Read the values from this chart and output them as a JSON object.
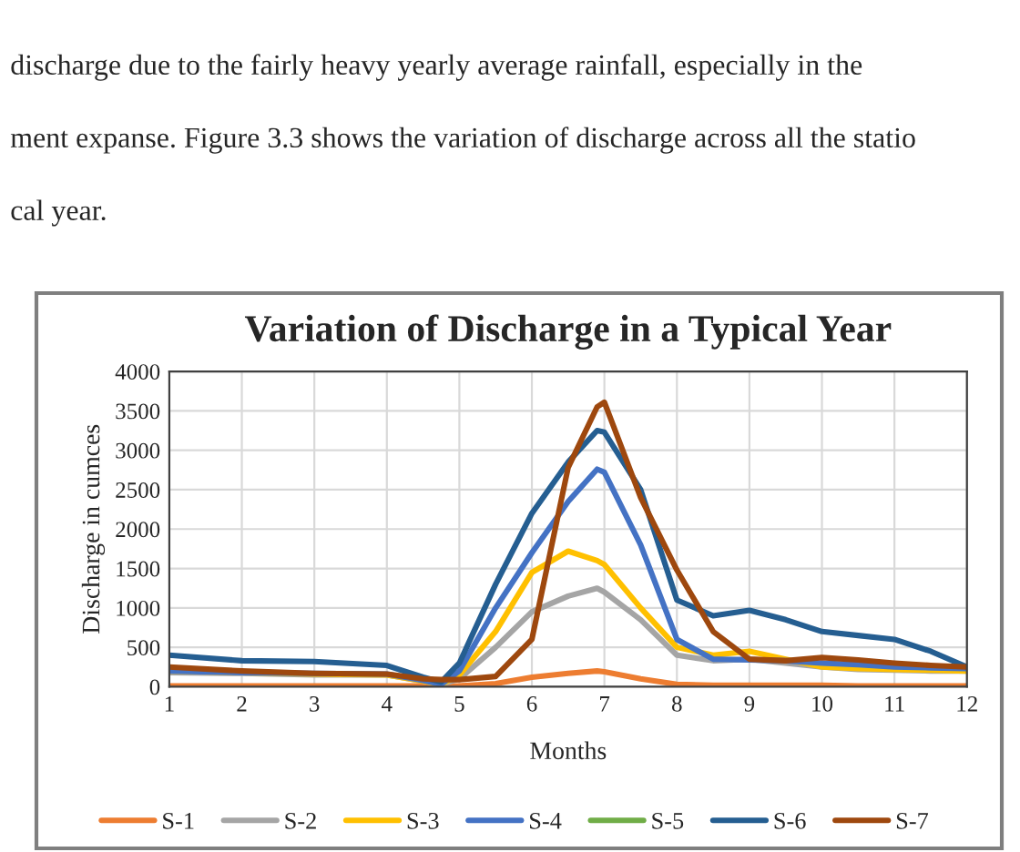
{
  "chart_data": {
    "type": "line",
    "title": "Variation of Discharge in a Typical Year",
    "xlabel": "Months",
    "ylabel": "Discharge in cumces",
    "annotations": [
      "discharge due to the fairly heavy yearly average rainfall, especially in the",
      "ment expanse. Figure 3.3 shows the variation of discharge across all the statio",
      "cal year."
    ],
    "x": [
      1,
      2,
      3,
      4,
      4.5,
      4.75,
      5,
      5.5,
      6,
      6.5,
      6.9,
      7,
      7.5,
      8,
      8.5,
      9,
      9.5,
      10,
      10.5,
      11,
      11.5,
      12
    ],
    "series": [
      {
        "name": "S-1",
        "color": "#ed7d31",
        "values": [
          10,
          10,
          10,
          10,
          10,
          10,
          10,
          40,
          120,
          170,
          200,
          190,
          100,
          30,
          20,
          20,
          20,
          20,
          10,
          10,
          10,
          10
        ]
      },
      {
        "name": "S-2",
        "color": "#a5a5a5",
        "values": [
          180,
          170,
          150,
          150,
          70,
          30,
          100,
          500,
          950,
          1150,
          1250,
          1200,
          850,
          400,
          330,
          350,
          300,
          250,
          220,
          210,
          200,
          200
        ]
      },
      {
        "name": "S-3",
        "color": "#ffc000",
        "values": [
          200,
          180,
          160,
          150,
          70,
          30,
          150,
          700,
          1450,
          1720,
          1600,
          1550,
          1000,
          500,
          400,
          450,
          350,
          250,
          230,
          220,
          210,
          200
        ]
      },
      {
        "name": "S-4",
        "color": "#4472c4",
        "values": [
          200,
          180,
          170,
          160,
          80,
          30,
          200,
          1000,
          1700,
          2350,
          2760,
          2720,
          1800,
          600,
          350,
          340,
          330,
          300,
          280,
          250,
          240,
          230
        ]
      },
      {
        "name": "S-5",
        "color": "#70ad47",
        "values": [
          null,
          null,
          null,
          null,
          null,
          null,
          null,
          null,
          null,
          null,
          null,
          null,
          null,
          null,
          null,
          null,
          null,
          null,
          null,
          null,
          null,
          null
        ]
      },
      {
        "name": "S-6",
        "color": "#255e91",
        "values": [
          400,
          330,
          320,
          270,
          120,
          60,
          300,
          1300,
          2200,
          2850,
          3250,
          3230,
          2500,
          1100,
          900,
          970,
          850,
          700,
          650,
          600,
          450,
          250
        ]
      },
      {
        "name": "S-7",
        "color": "#9e480e",
        "values": [
          250,
          200,
          170,
          160,
          100,
          90,
          90,
          130,
          600,
          2780,
          3550,
          3610,
          2400,
          1480,
          700,
          350,
          330,
          370,
          340,
          300,
          270,
          250
        ]
      }
    ],
    "xlim": [
      1,
      12
    ],
    "xticks": [
      1,
      2,
      3,
      4,
      5,
      6,
      7,
      8,
      9,
      10,
      11,
      12
    ],
    "ylim": [
      0,
      4000
    ],
    "yticks": [
      0,
      500,
      1000,
      1500,
      2000,
      2500,
      3000,
      3500,
      4000
    ],
    "grid": true,
    "legend": "bottom",
    "marker": "none",
    "line_style": "solid"
  }
}
